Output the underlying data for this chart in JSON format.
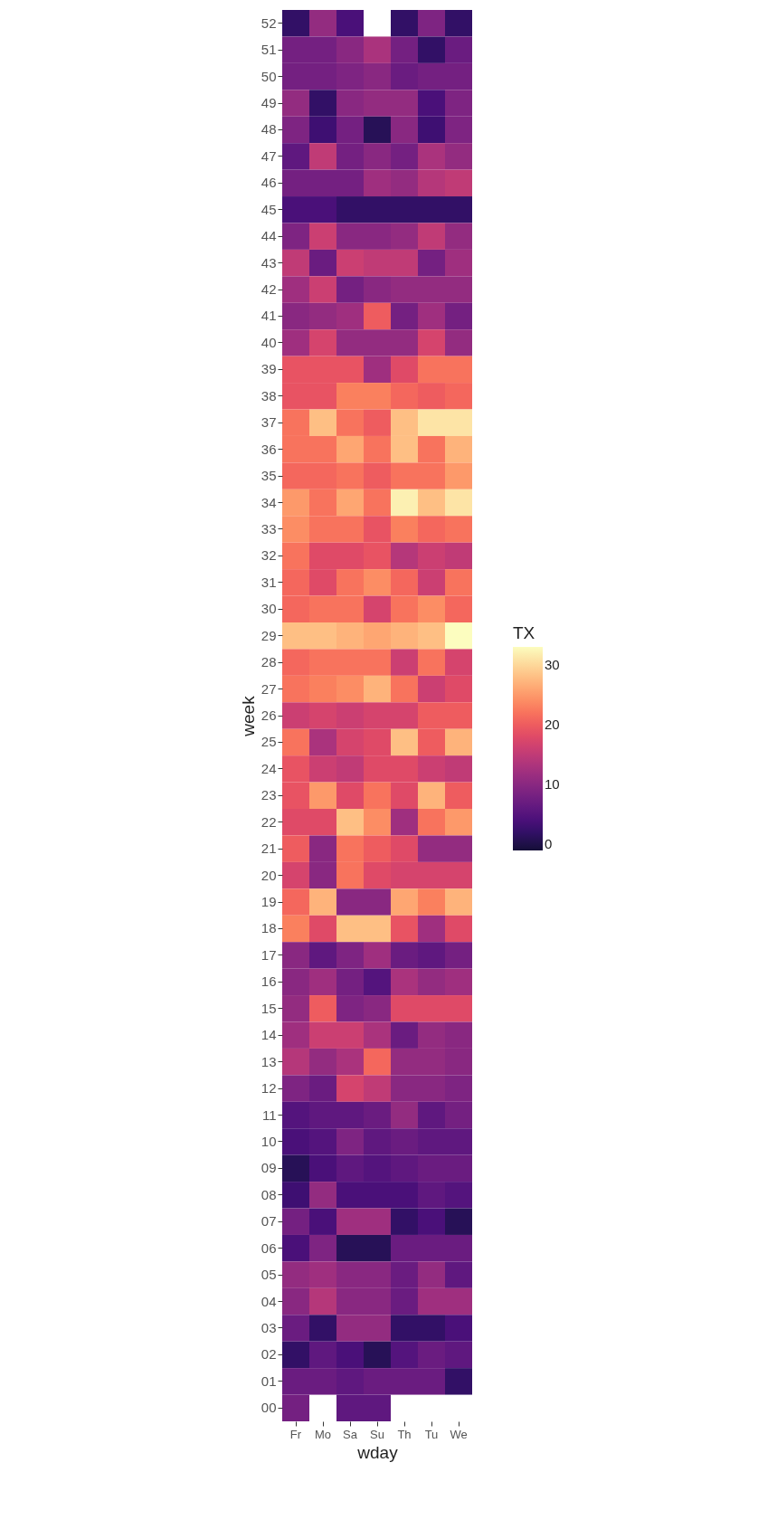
{
  "chart_data": {
    "type": "heatmap",
    "xlabel": "wday",
    "ylabel": "week",
    "legend_title": "TX",
    "categories": [
      "Fr",
      "Mo",
      "Sa",
      "Su",
      "Th",
      "Tu",
      "We"
    ],
    "y_categories": [
      "52",
      "51",
      "50",
      "49",
      "48",
      "47",
      "46",
      "45",
      "44",
      "43",
      "42",
      "41",
      "40",
      "39",
      "38",
      "37",
      "36",
      "35",
      "34",
      "33",
      "32",
      "31",
      "30",
      "29",
      "28",
      "27",
      "26",
      "25",
      "24",
      "23",
      "22",
      "21",
      "20",
      "19",
      "18",
      "17",
      "16",
      "15",
      "14",
      "13",
      "12",
      "11",
      "10",
      "09",
      "08",
      "07",
      "06",
      "05",
      "04",
      "03",
      "02",
      "01",
      "00"
    ],
    "cells": [
      [
        2,
        11,
        4,
        null,
        2,
        9,
        2
      ],
      [
        8,
        8,
        10,
        13,
        8,
        2,
        7
      ],
      [
        8,
        8,
        9,
        10,
        7,
        8,
        8
      ],
      [
        11,
        2,
        10,
        11,
        11,
        4,
        9
      ],
      [
        9,
        3,
        8,
        1,
        10,
        3,
        9
      ],
      [
        6,
        15,
        8,
        10,
        8,
        13,
        11
      ],
      [
        8,
        8,
        8,
        12,
        11,
        14,
        15
      ],
      [
        4,
        4,
        2,
        2,
        2,
        2,
        2
      ],
      [
        9,
        16,
        10,
        10,
        11,
        15,
        11
      ],
      [
        15,
        7,
        16,
        15,
        15,
        8,
        12
      ],
      [
        12,
        16,
        8,
        10,
        11,
        11,
        11
      ],
      [
        10,
        11,
        12,
        20,
        8,
        12,
        8
      ],
      [
        12,
        17,
        11,
        11,
        11,
        17,
        11
      ],
      [
        19,
        19,
        19,
        12,
        18,
        22,
        22
      ],
      [
        19,
        19,
        23,
        23,
        21,
        20,
        21
      ],
      [
        22,
        28,
        22,
        20,
        28,
        31,
        31
      ],
      [
        22,
        22,
        26,
        22,
        28,
        22,
        27
      ],
      [
        21,
        21,
        22,
        20,
        22,
        22,
        25
      ],
      [
        25,
        22,
        26,
        22,
        32,
        28,
        31
      ],
      [
        24,
        22,
        22,
        19,
        23,
        21,
        22
      ],
      [
        22,
        18,
        18,
        19,
        14,
        16,
        15
      ],
      [
        21,
        18,
        22,
        24,
        21,
        16,
        22
      ],
      [
        21,
        22,
        22,
        17,
        22,
        24,
        21
      ],
      [
        28,
        28,
        27,
        26,
        27,
        28,
        33
      ],
      [
        21,
        22,
        22,
        22,
        16,
        22,
        17
      ],
      [
        22,
        23,
        24,
        27,
        22,
        16,
        18
      ],
      [
        16,
        17,
        16,
        17,
        17,
        20,
        20
      ],
      [
        22,
        13,
        17,
        18,
        28,
        20,
        27
      ],
      [
        19,
        16,
        15,
        18,
        18,
        16,
        15
      ],
      [
        19,
        25,
        18,
        22,
        18,
        27,
        20
      ],
      [
        18,
        18,
        28,
        24,
        12,
        22,
        25
      ],
      [
        20,
        10,
        22,
        20,
        18,
        11,
        11
      ],
      [
        17,
        10,
        22,
        18,
        17,
        17,
        17
      ],
      [
        21,
        27,
        10,
        10,
        26,
        23,
        27
      ],
      [
        23,
        18,
        28,
        28,
        19,
        12,
        18
      ],
      [
        10,
        6,
        9,
        12,
        7,
        6,
        8
      ],
      [
        10,
        12,
        8,
        5,
        13,
        11,
        12
      ],
      [
        11,
        20,
        9,
        10,
        18,
        18,
        18
      ],
      [
        12,
        16,
        16,
        13,
        7,
        11,
        10
      ],
      [
        14,
        11,
        13,
        21,
        11,
        11,
        10
      ],
      [
        9,
        7,
        17,
        15,
        10,
        10,
        9
      ],
      [
        5,
        6,
        6,
        7,
        11,
        6,
        8
      ],
      [
        4,
        5,
        9,
        6,
        7,
        6,
        6
      ],
      [
        1,
        4,
        6,
        5,
        6,
        7,
        7
      ],
      [
        3,
        11,
        4,
        4,
        4,
        6,
        5
      ],
      [
        8,
        4,
        12,
        12,
        2,
        4,
        1
      ],
      [
        4,
        9,
        1,
        1,
        7,
        7,
        7
      ],
      [
        11,
        12,
        10,
        10,
        7,
        11,
        6
      ],
      [
        10,
        14,
        10,
        10,
        7,
        12,
        12
      ],
      [
        7,
        2,
        11,
        11,
        2,
        2,
        4
      ],
      [
        2,
        6,
        4,
        1,
        5,
        7,
        6
      ],
      [
        7,
        7,
        6,
        7,
        7,
        7,
        2
      ],
      [
        8,
        null,
        6,
        6,
        null,
        null,
        null
      ]
    ],
    "clim": [
      -1,
      33
    ],
    "cticks": [
      0,
      10,
      20,
      30
    ],
    "grid": false
  }
}
